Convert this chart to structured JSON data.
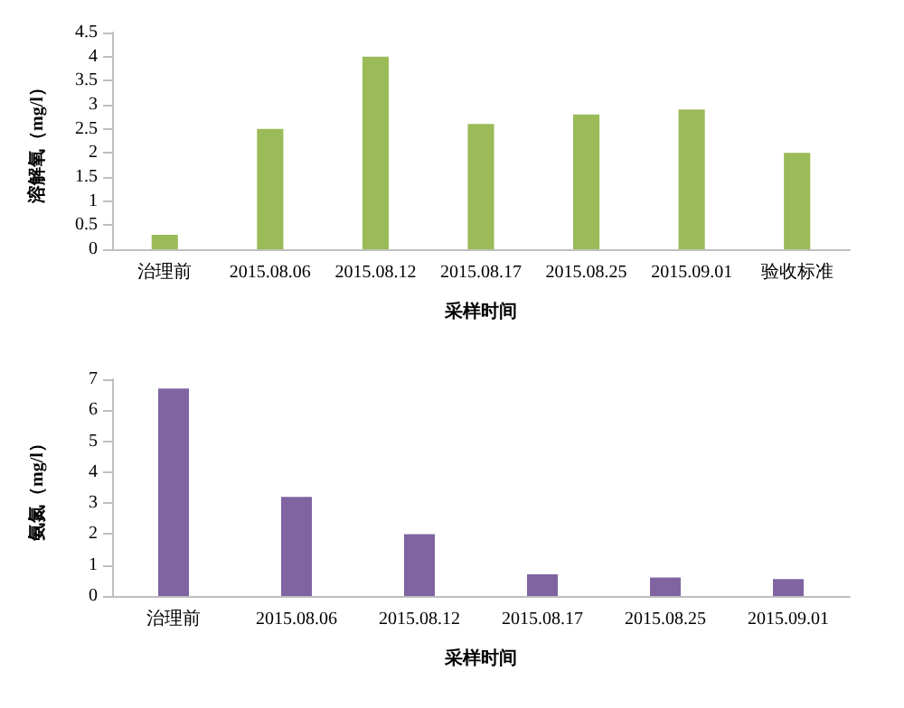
{
  "chart_data": [
    {
      "type": "bar",
      "xlabel": "采样时间",
      "ylabel": "溶解氧（mg/l）",
      "categories": [
        "治理前",
        "2015.08.06",
        "2015.08.12",
        "2015.08.17",
        "2015.08.25",
        "2015.09.01",
        "验收标准"
      ],
      "values": [
        0.3,
        2.5,
        4.0,
        2.6,
        2.8,
        2.9,
        2.0
      ],
      "color": "#9bbb59",
      "ylim": [
        0,
        4.5
      ],
      "yticks": [
        0,
        0.5,
        1,
        1.5,
        2,
        2.5,
        3,
        3.5,
        4,
        4.5
      ]
    },
    {
      "type": "bar",
      "xlabel": "采样时间",
      "ylabel": "氨氮（mg/l）",
      "categories": [
        "治理前",
        "2015.08.06",
        "2015.08.12",
        "2015.08.17",
        "2015.08.25",
        "2015.09.01"
      ],
      "values": [
        6.7,
        3.2,
        2.0,
        0.7,
        0.6,
        0.55
      ],
      "color": "#8064a2",
      "ylim": [
        0,
        7
      ],
      "yticks": [
        0,
        1,
        2,
        3,
        4,
        5,
        6,
        7
      ]
    }
  ]
}
